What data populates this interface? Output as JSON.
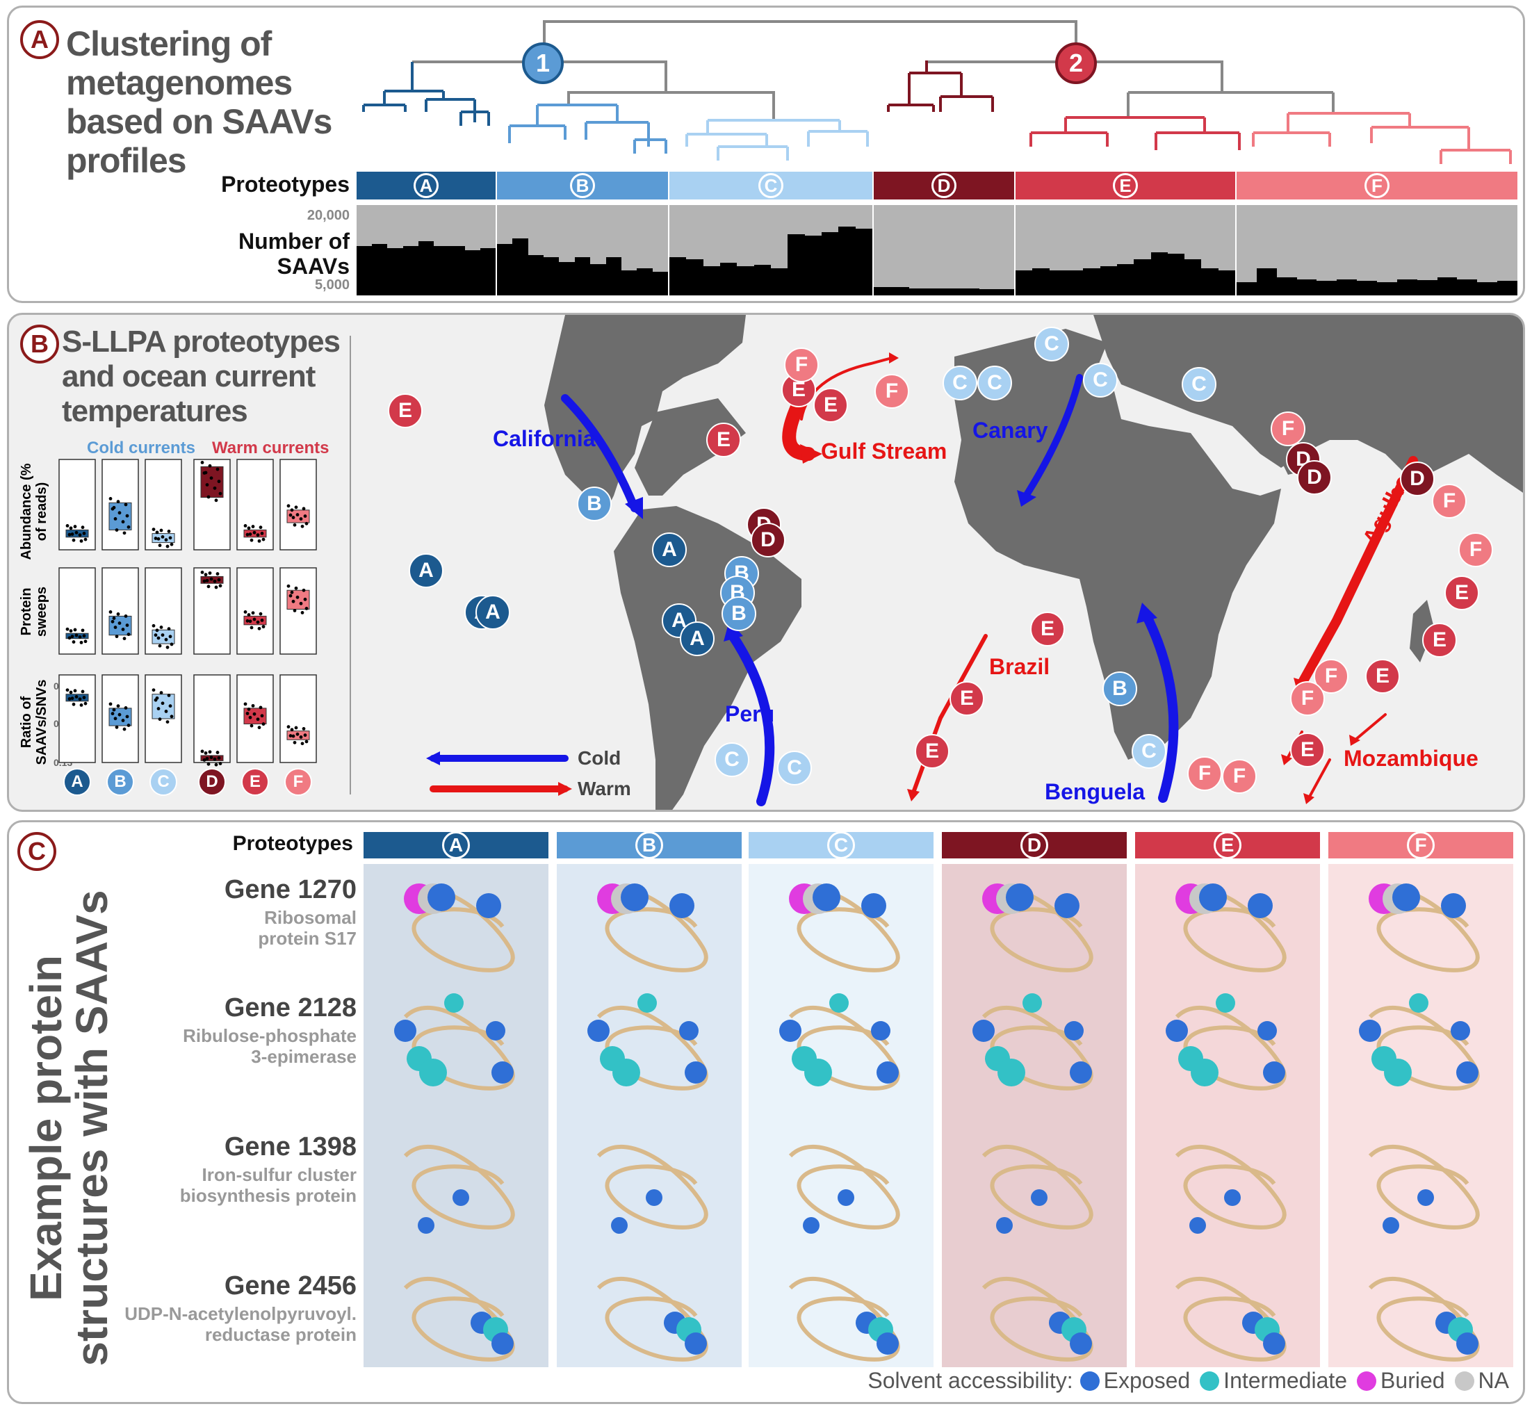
{
  "panel_a": {
    "letter": "A",
    "title_lines": [
      "Clustering of",
      "metagenomes",
      "based on SAAVs",
      "profiles"
    ],
    "cluster1": "1",
    "cluster2": "2",
    "proteotypes_label": "Proteotypes",
    "saav_label_line1": "Number of",
    "saav_label_line2": "SAAVs",
    "axis_top": "20,000",
    "axis_bottom": "5,000"
  },
  "proteotypes": [
    {
      "id": "A",
      "color": "#1c5a8f"
    },
    {
      "id": "B",
      "color": "#5b9bd5"
    },
    {
      "id": "C",
      "color": "#a9d1f2"
    },
    {
      "id": "D",
      "color": "#7e1522"
    },
    {
      "id": "E",
      "color": "#d2394a"
    },
    {
      "id": "F",
      "color": "#f07a82"
    }
  ],
  "saav_bars": {
    "A": [
      0.55,
      0.57,
      0.52,
      0.55,
      0.6,
      0.55,
      0.55,
      0.5,
      0.52
    ],
    "B": [
      0.57,
      0.63,
      0.45,
      0.42,
      0.37,
      0.42,
      0.35,
      0.42,
      0.28,
      0.3,
      0.26
    ],
    "C": [
      0.42,
      0.4,
      0.32,
      0.36,
      0.32,
      0.34,
      0.3,
      0.68,
      0.66,
      0.7,
      0.76,
      0.74
    ],
    "D": [
      0.09,
      0.09,
      0.08,
      0.08,
      0.08,
      0.08,
      0.07,
      0.07
    ],
    "E": [
      0.28,
      0.3,
      0.28,
      0.28,
      0.3,
      0.32,
      0.35,
      0.4,
      0.48,
      0.46,
      0.4,
      0.3,
      0.28
    ],
    "F": [
      0.15,
      0.3,
      0.2,
      0.18,
      0.16,
      0.18,
      0.16,
      0.15,
      0.18,
      0.17,
      0.2,
      0.18,
      0.15,
      0.16
    ]
  },
  "panel_b": {
    "letter": "B",
    "title_lines": [
      "S-LLPA proteotypes",
      "and ocean current",
      "temperatures"
    ],
    "cold_label": "Cold currents",
    "warm_label": "Warm currents",
    "y1_label": "Abundance (% of reads)",
    "y1_ticks": [
      "4",
      "1"
    ],
    "y2_label": "Protein sweeps",
    "y2_ticks": [
      "60",
      "20"
    ],
    "y3_label": "Ratio of SAAVs/SNVs",
    "y3_ticks": [
      "0.19",
      "0.16",
      "0.13"
    ],
    "currents": [
      "California",
      "Gulf Stream",
      "Canary",
      "Agulhas",
      "Brazil",
      "Peru",
      "Benguela",
      "Mozambique"
    ],
    "legend_cold": "Cold",
    "legend_warm": "Warm"
  },
  "panel_c": {
    "letter": "C",
    "side_title_1": "Example protein",
    "side_title_2": "structures with SAAVs",
    "proteotypes_label": "Proteotypes",
    "genes": [
      {
        "name": "Gene 1270",
        "desc1": "Ribosomal",
        "desc2": "protein S17"
      },
      {
        "name": "Gene 2128",
        "desc1": "Ribulose-phosphate",
        "desc2": "3-epimerase"
      },
      {
        "name": "Gene 1398",
        "desc1": "Iron-sulfur cluster",
        "desc2": "biosynthesis protein"
      },
      {
        "name": "Gene 2456",
        "desc1": "UDP-N-acetylenolpyruvoyl.",
        "desc2": "reductase protein"
      }
    ],
    "legend": {
      "title": "Solvent accessibility:",
      "items": [
        {
          "label": "Exposed",
          "color": "#2f6fd6"
        },
        {
          "label": "Intermediate",
          "color": "#33c1c6"
        },
        {
          "label": "Buried",
          "color": "#e03ce0"
        },
        {
          "label": "NA",
          "color": "#c8c8c8"
        }
      ]
    }
  }
}
